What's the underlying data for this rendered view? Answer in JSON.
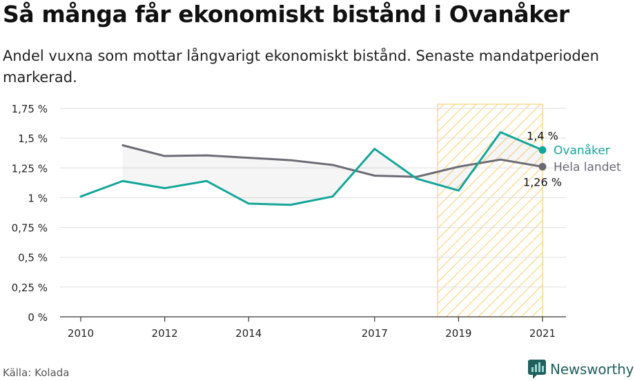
{
  "header": {
    "title": "Så många får ekonomiskt bistånd i Ovanåker",
    "subtitle": "Andel vuxna som mottar långvarigt ekonomiskt bistånd. Senaste mandatperioden markerad."
  },
  "footer": {
    "source": "Källa: Kolada",
    "brand": "Newsworthy"
  },
  "colors": {
    "ovanaker": "#13a698",
    "riket": "#6c6a73",
    "highlight": "#f6c24d",
    "grid": "#dddddd",
    "brand": "#1f5f5c"
  },
  "icons": {
    "brand_logo": "newsworthy-logo-icon"
  },
  "chart_data": {
    "type": "line",
    "ylim": [
      0,
      1.75
    ],
    "xlim": [
      2010,
      2021
    ],
    "yticks": [
      0,
      0.25,
      0.5,
      0.75,
      1,
      1.25,
      1.5,
      1.75
    ],
    "ytick_labels": [
      "0 %",
      "0,25 %",
      "0,5 %",
      "0,75 %",
      "1 %",
      "1,25 %",
      "1,5 %",
      "1,75 %"
    ],
    "xticks": [
      2010,
      2012,
      2014,
      2017,
      2019,
      2021
    ],
    "xtick_labels": [
      "2010",
      "2012",
      "2014",
      "2017",
      "2019",
      "2021"
    ],
    "highlight_period": [
      2018.5,
      2021
    ],
    "grid": true,
    "series": [
      {
        "name": "Ovanåker",
        "x": [
          2010,
          2011,
          2012,
          2013,
          2014,
          2015,
          2016,
          2017,
          2018,
          2019,
          2020,
          2021
        ],
        "values": [
          1.01,
          1.14,
          1.08,
          1.14,
          0.95,
          0.94,
          1.01,
          1.41,
          1.16,
          1.06,
          1.55,
          1.4
        ],
        "end_label": "1,4 %"
      },
      {
        "name": "Hela landet",
        "x": [
          2011,
          2012,
          2013,
          2014,
          2015,
          2016,
          2017,
          2018,
          2019,
          2020,
          2021
        ],
        "values": [
          1.44,
          1.35,
          1.355,
          1.335,
          1.315,
          1.275,
          1.185,
          1.175,
          1.26,
          1.32,
          1.26
        ],
        "end_label": "1,26 %"
      }
    ]
  }
}
